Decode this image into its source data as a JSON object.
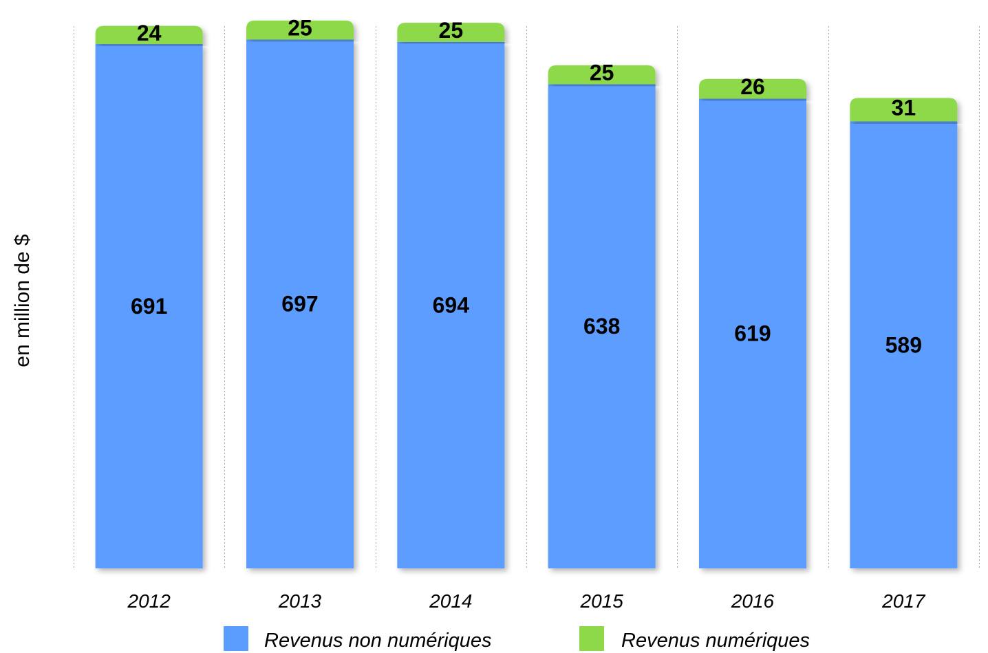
{
  "chart_data": {
    "type": "bar",
    "stacked": true,
    "categories": [
      "2012",
      "2013",
      "2014",
      "2015",
      "2016",
      "2017"
    ],
    "series": [
      {
        "name": "Revenus non numériques",
        "color": "#5b9dff",
        "values": [
          691,
          697,
          694,
          638,
          619,
          589
        ]
      },
      {
        "name": "Revenus numériques",
        "color": "#8ed94a",
        "values": [
          24,
          25,
          25,
          25,
          26,
          31
        ]
      }
    ],
    "title": "",
    "xlabel": "",
    "ylabel": "en million de $",
    "ylim": [
      0,
      740
    ],
    "grid": "vertical-dotted",
    "legend": "bottom",
    "data_labels": true
  }
}
